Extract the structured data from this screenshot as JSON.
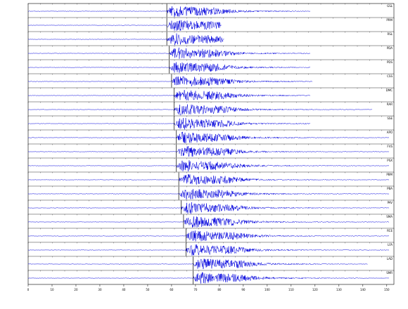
{
  "chart_data": {
    "type": "seismogram",
    "xlim": [
      0,
      153
    ],
    "xticks": [
      0,
      10,
      20,
      30,
      40,
      50,
      60,
      70,
      80,
      90,
      100,
      110,
      120,
      130,
      140,
      150
    ],
    "color": "#0000dd",
    "pick_color": "#000000",
    "traces": [
      {
        "name": "GSL",
        "onset": 58,
        "end": 118
      },
      {
        "name": "PRM",
        "onset": 58,
        "end": 81
      },
      {
        "name": "RSL",
        "onset": 58,
        "end": 82
      },
      {
        "name": "PDA",
        "onset": 59,
        "end": 118
      },
      {
        "name": "PDS",
        "onset": 59,
        "end": 118
      },
      {
        "name": "CSS",
        "onset": 60,
        "end": 119
      },
      {
        "name": "DMC",
        "onset": 61,
        "end": 118
      },
      {
        "name": "RAR",
        "onset": 61,
        "end": 144
      },
      {
        "name": "SSE",
        "onset": 61,
        "end": 118
      },
      {
        "name": "APO",
        "onset": 62,
        "end": 151
      },
      {
        "name": "FVS",
        "onset": 62,
        "end": 151
      },
      {
        "name": "PSX",
        "onset": 62,
        "end": 151
      },
      {
        "name": "PBM",
        "onset": 63,
        "end": 151
      },
      {
        "name": "PBA",
        "onset": 63,
        "end": 151
      },
      {
        "name": "PAV",
        "onset": 64,
        "end": 151
      },
      {
        "name": "SMA",
        "onset": 65,
        "end": 151
      },
      {
        "name": "RCE",
        "onset": 66,
        "end": 151
      },
      {
        "name": "LFA",
        "onset": 66,
        "end": 151
      },
      {
        "name": "LAD",
        "onset": 69,
        "end": 142
      },
      {
        "name": "SMR",
        "onset": 69,
        "end": 151
      }
    ]
  }
}
